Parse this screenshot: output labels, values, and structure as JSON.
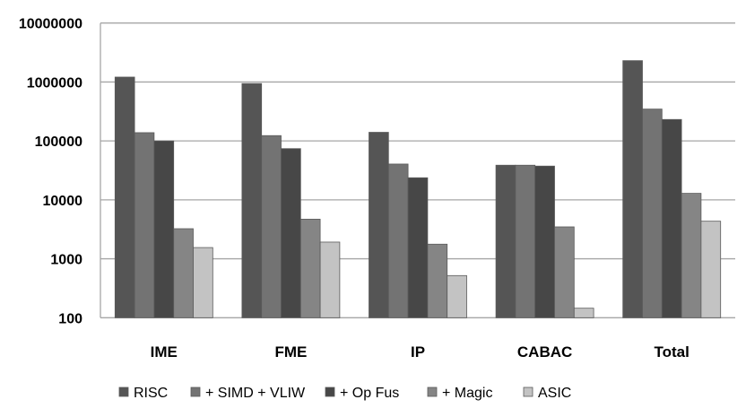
{
  "chart_data": {
    "type": "bar",
    "scale": "log",
    "ylim": [
      100,
      10000000
    ],
    "yticks": [
      "100",
      "1000",
      "10000",
      "100000",
      "1000000",
      "10000000"
    ],
    "grid": true,
    "legend_position": "bottom",
    "categories": [
      "IME",
      "FME",
      "IP",
      "CABAC",
      "Total"
    ],
    "series": [
      {
        "name": "RISC",
        "color": "#555555",
        "values": [
          1210000,
          940000,
          140000,
          38700,
          2300000
        ]
      },
      {
        "name": "+ SIMD + VLIW",
        "color": "#737373",
        "values": [
          138000,
          123000,
          40500,
          38700,
          347000
        ]
      },
      {
        "name": "+ Op Fus",
        "color": "#474747",
        "values": [
          100000,
          74000,
          23700,
          37400,
          231000
        ]
      },
      {
        "name": "+ Magic",
        "color": "#858585",
        "values": [
          3240,
          4700,
          1770,
          3480,
          12900
        ]
      },
      {
        "name": "ASIC",
        "color": "#c3c3c3",
        "values": [
          1550,
          1920,
          519,
          145,
          4340
        ]
      }
    ]
  }
}
